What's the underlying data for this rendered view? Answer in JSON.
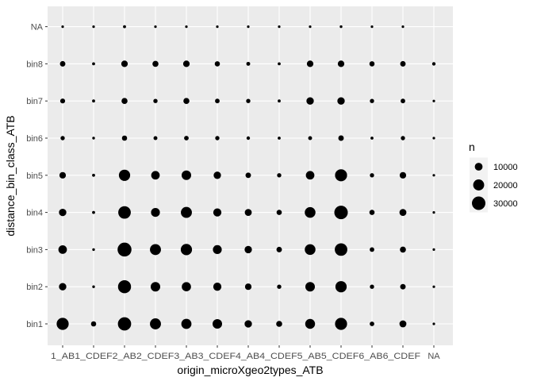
{
  "chart_data": {
    "type": "scatter",
    "title": "",
    "xlabel": "origin_microXgeo2types_ATB",
    "ylabel": "distance_bin_class_ATB",
    "x_categories": [
      "1_AB1_CDEF",
      "1_CDEF2_AB2_CDEF3_AB3_CDEF4_AB4_CDEF5_AB5_CDEF6_AB6_CDEF",
      "NA"
    ],
    "x_tick_labels": [
      "1_AB1_CDEF2_AB2_CDEF3_AB3_CDEF4_AB4_CDEF5_AB5_CDEF6_AB6_CDEF",
      "NA"
    ],
    "x_ticks": [
      "1_AB",
      "1_CDEF",
      "2_AB",
      "2_CDEF",
      "3_AB",
      "3_CDEF",
      "4_AB",
      "4_CDEF",
      "5_AB",
      "5_CDEF",
      "6_AB",
      "6_CDEF",
      "NA"
    ],
    "y_ticks": [
      "bin1",
      "bin2",
      "bin3",
      "bin4",
      "bin5",
      "bin6",
      "bin7",
      "bin8",
      "NA"
    ],
    "size_legend": {
      "title": "n",
      "breaks": [
        10000,
        20000,
        30000
      ],
      "labels": [
        "10000",
        "20000",
        "30000"
      ]
    },
    "grid": true,
    "background": "#EBEBEB",
    "grid_color": "#FFFFFF",
    "point_color": "#000000",
    "legend_position": "right",
    "counts": {
      "1_AB": [
        24000,
        9000,
        12000,
        9000,
        7000,
        3000,
        4000,
        5000,
        1000
      ],
      "1_CDEF": [
        4500,
        1200,
        1200,
        1500,
        1500,
        1200,
        1500,
        1500,
        600
      ],
      "2_AB": [
        29000,
        28000,
        32000,
        26000,
        21000,
        4500,
        6000,
        7000,
        1500
      ],
      "2_CDEF": [
        20000,
        15000,
        20000,
        13000,
        12000,
        2500,
        3000,
        6000,
        600
      ],
      "3_AB": [
        17000,
        14000,
        21000,
        20000,
        15000,
        3500,
        6000,
        7000,
        600
      ],
      "3_CDEF": [
        15000,
        11000,
        13000,
        11000,
        9000,
        3000,
        3500,
        4500,
        600
      ],
      "4_AB": [
        9000,
        7000,
        9000,
        8000,
        5000,
        2000,
        3000,
        2500,
        600
      ],
      "4_CDEF": [
        6000,
        3000,
        5000,
        4500,
        3000,
        1500,
        1500,
        1500,
        600
      ],
      "5_AB": [
        16000,
        15000,
        19000,
        19000,
        12000,
        2500,
        9000,
        7000,
        600
      ],
      "5_CDEF": [
        24000,
        21000,
        26000,
        30000,
        24000,
        5000,
        9000,
        7000,
        1200
      ],
      "6_AB": [
        3500,
        3000,
        3500,
        4500,
        3000,
        1500,
        3000,
        4500,
        900
      ],
      "6_CDEF": [
        8000,
        5000,
        6000,
        8000,
        7000,
        3000,
        3500,
        5000,
        500
      ],
      "NA": [
        1000,
        1000,
        1000,
        1000,
        1000,
        1000,
        1000,
        2000,
        0
      ]
    }
  },
  "x_axis_text": {
    "tick_labels": [
      "1_AB1_CDEF2_AB2_CDEF3_AB3_CDEF4_AB4_CDEF5_AB5_CDEF6_AB6_CDEF",
      "NA"
    ]
  }
}
